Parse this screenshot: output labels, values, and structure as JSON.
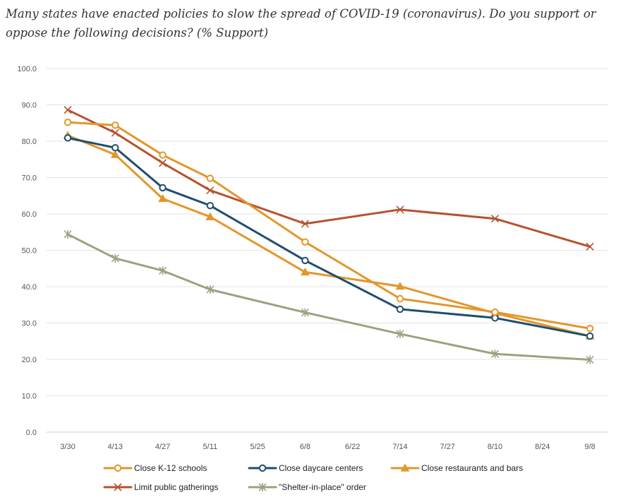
{
  "chart_data": {
    "type": "line",
    "title": "Many states have enacted policies to slow the spread of COVID-19 (coronavirus). Do you support or oppose the following decisions? (% Support)",
    "xlabel": "",
    "ylabel": "",
    "ylim": [
      0,
      100
    ],
    "yticks": [
      "0.0",
      "10.0",
      "20.0",
      "30.0",
      "40.0",
      "50.0",
      "60.0",
      "70.0",
      "80.0",
      "90.0",
      "100.0"
    ],
    "x_ticks": [
      "3/30",
      "4/13",
      "4/27",
      "5/11",
      "5/25",
      "6/8",
      "6/22",
      "7/14",
      "7/27",
      "8/10",
      "8/24",
      "9/8"
    ],
    "grid": "horizontal",
    "legend_position": "bottom",
    "series": [
      {
        "name": "Close K-12 schools",
        "color": "#E3962B",
        "marker": "circle-open",
        "points": [
          [
            "3/30",
            85.2
          ],
          [
            "4/13",
            84.4
          ],
          [
            "4/27",
            76.2
          ],
          [
            "5/11",
            69.8
          ],
          [
            "6/8",
            52.3
          ],
          [
            "7/14",
            36.7
          ],
          [
            "8/10",
            33.0
          ],
          [
            "9/8",
            28.5
          ]
        ]
      },
      {
        "name": "Close daycare centers",
        "color": "#1F4E6E",
        "marker": "circle-open",
        "points": [
          [
            "3/30",
            80.9
          ],
          [
            "4/13",
            78.2
          ],
          [
            "4/27",
            67.2
          ],
          [
            "5/11",
            62.3
          ],
          [
            "6/8",
            47.2
          ],
          [
            "7/14",
            33.8
          ],
          [
            "8/10",
            31.4
          ],
          [
            "9/8",
            26.4
          ]
        ]
      },
      {
        "name": "Close restaurants and bars",
        "color": "#E3962B",
        "marker": "triangle",
        "points": [
          [
            "3/30",
            81.6
          ],
          [
            "4/13",
            76.3
          ],
          [
            "4/27",
            64.2
          ],
          [
            "5/11",
            59.2
          ],
          [
            "6/8",
            44.0
          ],
          [
            "7/14",
            40.1
          ],
          [
            "8/10",
            32.7
          ],
          [
            "9/8",
            26.4
          ]
        ]
      },
      {
        "name": "Limit public gatherings",
        "color": "#B5522F",
        "marker": "x",
        "points": [
          [
            "3/30",
            88.6
          ],
          [
            "4/13",
            82.3
          ],
          [
            "4/27",
            74.0
          ],
          [
            "5/11",
            66.5
          ],
          [
            "6/8",
            57.3
          ],
          [
            "7/14",
            61.2
          ],
          [
            "8/10",
            58.7
          ],
          [
            "9/8",
            51.0
          ]
        ]
      },
      {
        "name": "\"Shelter-in-place\" order",
        "color": "#9AA37E",
        "marker": "star",
        "points": [
          [
            "3/30",
            54.4
          ],
          [
            "4/13",
            47.8
          ],
          [
            "4/27",
            44.4
          ],
          [
            "5/11",
            39.2
          ],
          [
            "6/8",
            32.9
          ],
          [
            "7/14",
            27.0
          ],
          [
            "8/10",
            21.5
          ],
          [
            "9/8",
            19.9
          ]
        ]
      }
    ]
  }
}
